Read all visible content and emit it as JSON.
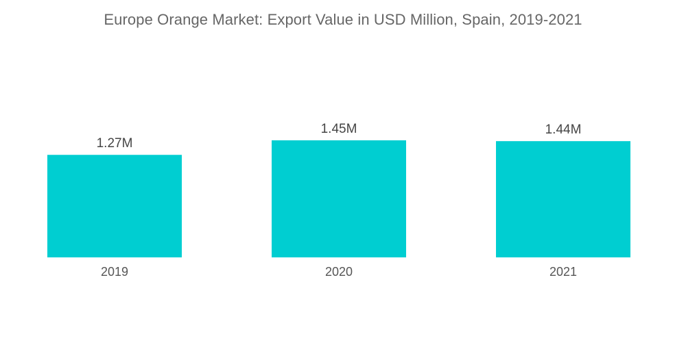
{
  "chart_data": {
    "type": "bar",
    "title": "Europe Orange Market: Export Value in USD Million, Spain, 2019-2021",
    "categories": [
      "2019",
      "2020",
      "2021"
    ],
    "values": [
      1.27,
      1.45,
      1.44
    ],
    "value_labels": [
      "1.27M",
      "1.45M",
      "1.44M"
    ],
    "xlabel": "",
    "ylabel": "",
    "ylim": [
      0,
      1.45
    ],
    "grid": false,
    "legend": "none",
    "bar_color": "#00CED1"
  }
}
